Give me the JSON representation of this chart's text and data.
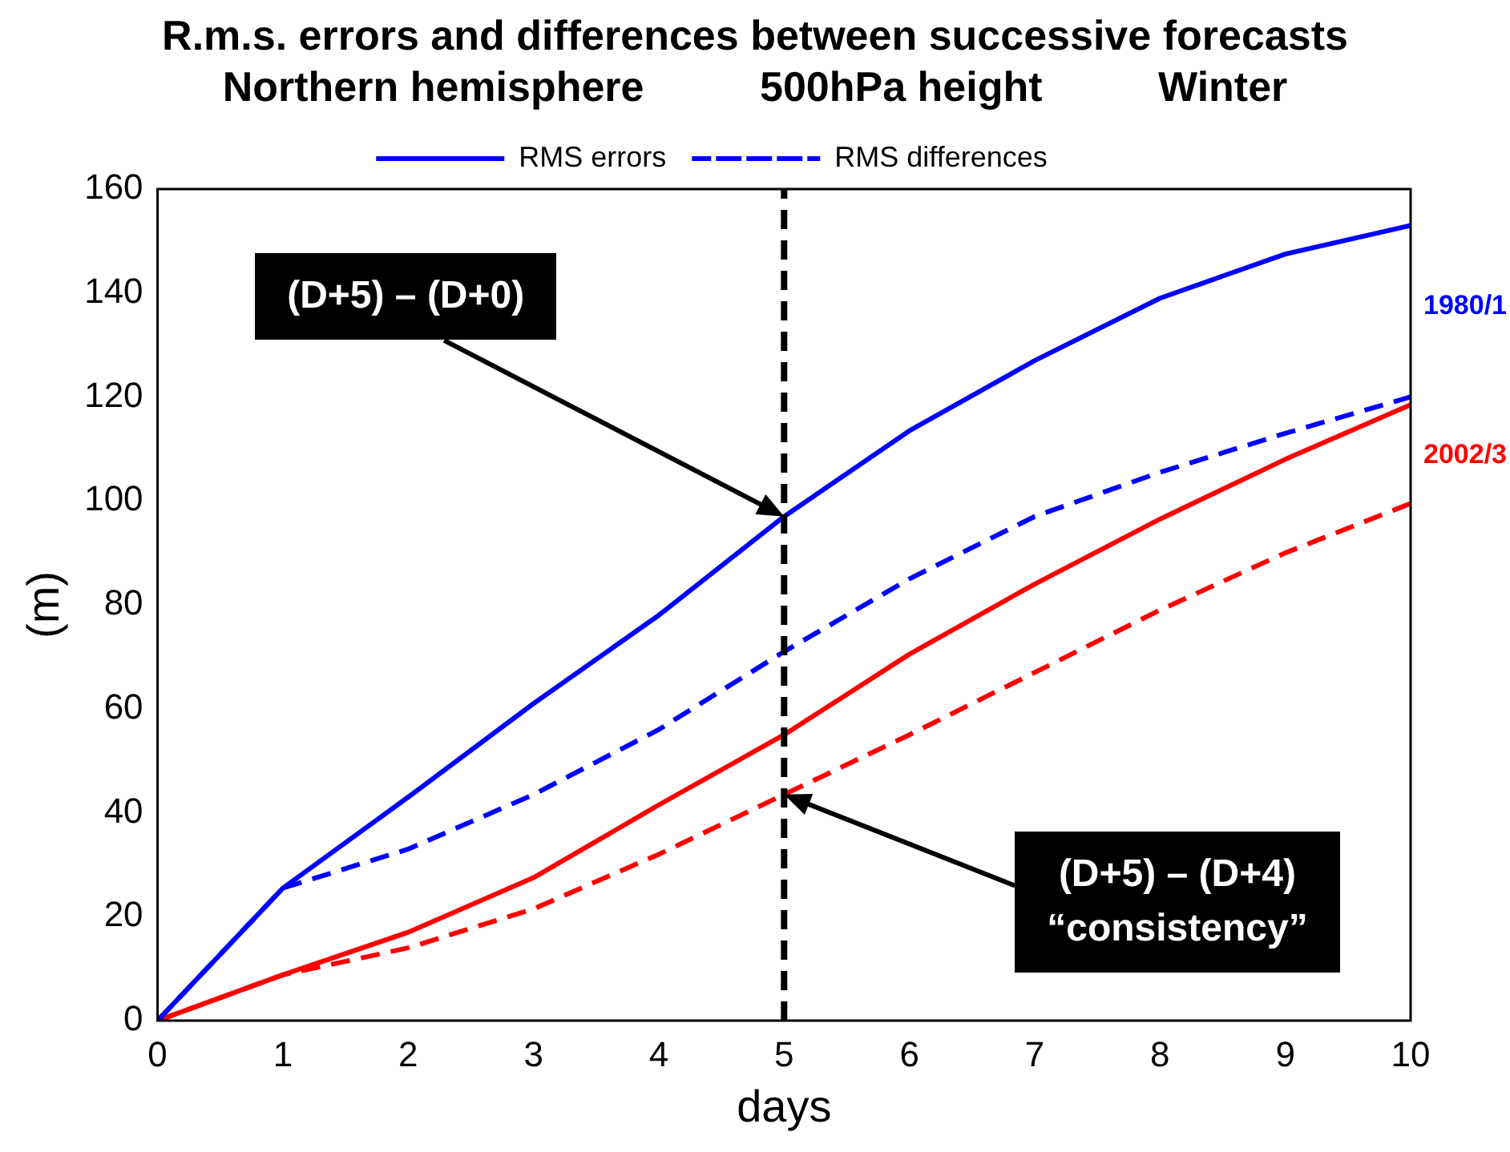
{
  "chart_data": {
    "type": "line",
    "title": "R.m.s. errors and differences between successive forecasts",
    "subtitle": "Northern hemisphere          500hPa height          Winter",
    "xlabel": "days",
    "ylabel": "(m)",
    "x": [
      0,
      1,
      2,
      3,
      4,
      5,
      6,
      7,
      8,
      9,
      10
    ],
    "series": [
      {
        "name": "RMS errors",
        "color": "#0000ff",
        "line_style": "solid",
        "values": [
          0,
          25.5,
          43,
          61,
          78,
          97,
          113.5,
          127,
          139,
          147.5,
          153
        ]
      },
      {
        "name": "RMS differences",
        "color": "#0000ff",
        "line_style": "dashed",
        "values": [
          0,
          25.5,
          33,
          43.5,
          56,
          71,
          85,
          97,
          105.5,
          113,
          120
        ]
      },
      {
        "color": "#ff0000",
        "line_style": "solid",
        "values": [
          0,
          8.8,
          17,
          27.5,
          41.5,
          55,
          70.5,
          84,
          96.5,
          108,
          118.5
        ]
      },
      {
        "color": "#ff0000",
        "line_style": "dashed",
        "values": [
          0,
          8.8,
          14,
          21.5,
          32,
          43.5,
          55,
          67,
          79,
          90,
          99.5
        ]
      }
    ],
    "xlim": [
      0,
      10
    ],
    "xticks": [
      0,
      1,
      2,
      3,
      4,
      5,
      6,
      7,
      8,
      9,
      10
    ],
    "ylim": [
      0,
      160
    ],
    "yticks": [
      0,
      20,
      40,
      60,
      80,
      100,
      120,
      140,
      160
    ],
    "grid": false,
    "legend": "top",
    "marker": "none",
    "ref_lines": [
      {
        "axis": "x",
        "value": 5,
        "color": "#000000",
        "line_style": "dashed"
      }
    ],
    "annotations": [
      "(D+5) – (D+0)",
      "(D+5) – (D+4)\n“consistency”",
      "1980/1",
      "2002/3"
    ]
  }
}
